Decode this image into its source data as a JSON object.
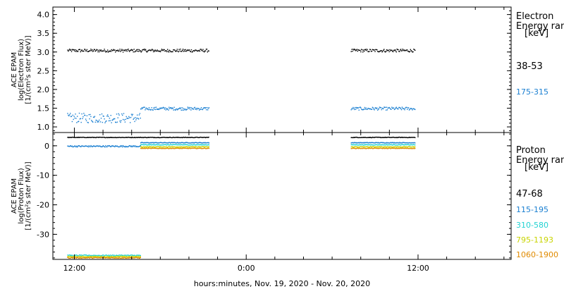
{
  "xlabel": "hours:minutes, Nov. 19, 2020 - Nov. 20, 2020",
  "x_ticks": [
    "12:00",
    "0:00",
    "12:00"
  ],
  "chart_data": [
    {
      "type": "scatter",
      "panel": "electron",
      "ylabel_lines": [
        "ACE EPAM",
        "log(Electron Flux)",
        "[1/(cm²s ster MeV)]"
      ],
      "ylim": [
        0.85,
        4.2
      ],
      "yticks": [
        "1.0",
        "1.5",
        "2.0",
        "2.5",
        "3.0",
        "3.5",
        "4.0"
      ],
      "ytick_values": [
        1.0,
        1.5,
        2.0,
        2.5,
        3.0,
        3.5,
        4.0
      ],
      "legend_title_lines": [
        "Electron",
        "Energy ran",
        "[keV]"
      ],
      "x_unit": "hours from Nov. 19, 2020 00:00",
      "xlim": [
        10.5,
        42.5
      ],
      "series": [
        {
          "name": "38-53",
          "color": "#000000",
          "segments": [
            {
              "x_start": 11.5,
              "x_end": 21.4,
              "value": 3.05,
              "spread": 0.04
            },
            {
              "x_start": 31.3,
              "x_end": 35.8,
              "value": 3.05,
              "spread": 0.04
            }
          ]
        },
        {
          "name": "175-315",
          "color": "#1a7fd1",
          "segments": [
            {
              "x_start": 11.5,
              "x_end": 16.6,
              "value": 1.25,
              "spread": 0.13
            },
            {
              "x_start": 16.6,
              "x_end": 21.4,
              "value": 1.5,
              "spread": 0.04
            },
            {
              "x_start": 31.3,
              "x_end": 35.8,
              "value": 1.5,
              "spread": 0.04
            }
          ]
        }
      ]
    },
    {
      "type": "scatter",
      "panel": "proton",
      "ylabel_lines": [
        "ACE EPAM",
        "log(Proton Flux)",
        "[1/(cm²s ster MeV)]"
      ],
      "ylim": [
        -38.5,
        4.5
      ],
      "yticks": [
        "0",
        "-10",
        "-20",
        "-30"
      ],
      "ytick_values": [
        0,
        -10,
        -20,
        -30
      ],
      "legend_title_lines": [
        "Proton",
        "Energy ran",
        "[keV]"
      ],
      "x_unit": "hours from Nov. 19, 2020 00:00",
      "xlim": [
        10.5,
        42.5
      ],
      "series": [
        {
          "name": "47-68",
          "color": "#000000",
          "segments": [
            {
              "x_start": 11.5,
              "x_end": 21.4,
              "value": 3.0,
              "spread": 0.1
            },
            {
              "x_start": 31.3,
              "x_end": 35.8,
              "value": 3.0,
              "spread": 0.1
            }
          ]
        },
        {
          "name": "115-195",
          "color": "#1a7fd1",
          "segments": [
            {
              "x_start": 11.5,
              "x_end": 16.6,
              "value": 0.0,
              "spread": 0.25
            },
            {
              "x_start": 16.6,
              "x_end": 21.4,
              "value": 1.2,
              "spread": 0.1
            },
            {
              "x_start": 31.3,
              "x_end": 35.8,
              "value": 1.2,
              "spread": 0.1
            }
          ]
        },
        {
          "name": "310-580",
          "color": "#22d2d2",
          "segments": [
            {
              "x_start": 11.5,
              "x_end": 16.6,
              "value": -37.0,
              "spread": 0.2
            },
            {
              "x_start": 16.6,
              "x_end": 21.4,
              "value": 0.5,
              "spread": 0.1
            },
            {
              "x_start": 31.3,
              "x_end": 35.8,
              "value": 0.5,
              "spread": 0.1
            }
          ]
        },
        {
          "name": "795-1193",
          "color": "#c8d400",
          "segments": [
            {
              "x_start": 11.5,
              "x_end": 16.6,
              "value": -37.4,
              "spread": 0.15
            },
            {
              "x_start": 16.6,
              "x_end": 21.4,
              "value": -0.2,
              "spread": 0.1
            },
            {
              "x_start": 31.3,
              "x_end": 35.8,
              "value": -0.2,
              "spread": 0.1
            }
          ]
        },
        {
          "name": "1060-1900",
          "color": "#e08a00",
          "segments": [
            {
              "x_start": 11.5,
              "x_end": 16.6,
              "value": -37.8,
              "spread": 0.15
            },
            {
              "x_start": 16.6,
              "x_end": 21.4,
              "value": -0.7,
              "spread": 0.1
            },
            {
              "x_start": 31.3,
              "x_end": 35.8,
              "value": -0.7,
              "spread": 0.1
            }
          ]
        }
      ]
    }
  ]
}
